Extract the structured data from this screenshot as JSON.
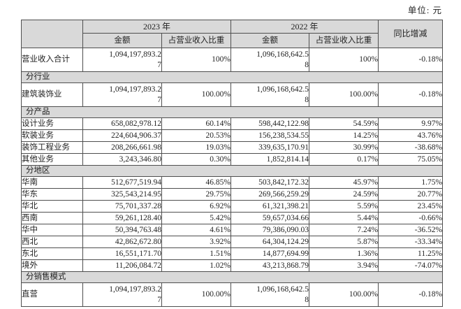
{
  "unit_label": "单位: 元",
  "table": {
    "header": {
      "year_2023": "2023 年",
      "year_2022": "2022 年",
      "yoy": "同比增减",
      "amount_2023": "金额",
      "share_2023": "占营业收入比重",
      "amount_2022": "金额",
      "share_2022": "占营业收入比重"
    },
    "colors": {
      "header_bg": "#d9d9d9",
      "border": "#4f4f4f",
      "text": "#1f1f1f"
    },
    "rows": [
      {
        "type": "data",
        "tall": true,
        "shaded_share": true,
        "label": "营业收入合计",
        "amount_2023": "1,094,197,893.2\n7",
        "share_2023": "100%",
        "amount_2022": "1,096,168,642.5\n8",
        "share_2022": "100%",
        "yoy": "-0.18%"
      },
      {
        "type": "section",
        "label": "分行业"
      },
      {
        "type": "data",
        "tall": true,
        "label": "建筑装饰业",
        "amount_2023": "1,094,197,893.2\n7",
        "share_2023": "100.00%",
        "amount_2022": "1,096,168,642.5\n8",
        "share_2022": "100.00%",
        "yoy": "-0.18%"
      },
      {
        "type": "section",
        "label": "分产品"
      },
      {
        "type": "data",
        "label": "设计业务",
        "amount_2023": "658,082,978.12",
        "share_2023": "60.14%",
        "amount_2022": "598,442,122.98",
        "share_2022": "54.59%",
        "yoy": "9.97%"
      },
      {
        "type": "data",
        "label": "软装业务",
        "amount_2023": "224,604,906.37",
        "share_2023": "20.53%",
        "amount_2022": "156,238,534.55",
        "share_2022": "14.25%",
        "yoy": "43.76%"
      },
      {
        "type": "data",
        "label": "装饰工程业务",
        "amount_2023": "208,266,661.98",
        "share_2023": "19.03%",
        "amount_2022": "339,635,170.91",
        "share_2022": "30.99%",
        "yoy": "-38.68%"
      },
      {
        "type": "data",
        "label": "其他业务",
        "amount_2023": "3,243,346.80",
        "share_2023": "0.30%",
        "amount_2022": "1,852,814.14",
        "share_2022": "0.17%",
        "yoy": "75.05%"
      },
      {
        "type": "section",
        "label": "分地区"
      },
      {
        "type": "data",
        "label": "华南",
        "amount_2023": "512,677,519.94",
        "share_2023": "46.85%",
        "amount_2022": "503,842,172.32",
        "share_2022": "45.97%",
        "yoy": "1.75%"
      },
      {
        "type": "data",
        "label": "华东",
        "amount_2023": "325,543,214.95",
        "share_2023": "29.75%",
        "amount_2022": "269,566,259.29",
        "share_2022": "24.59%",
        "yoy": "20.77%"
      },
      {
        "type": "data",
        "label": "华北",
        "amount_2023": "75,701,337.28",
        "share_2023": "6.92%",
        "amount_2022": "61,321,398.21",
        "share_2022": "5.59%",
        "yoy": "23.45%"
      },
      {
        "type": "data",
        "label": "西南",
        "amount_2023": "59,261,128.40",
        "share_2023": "5.42%",
        "amount_2022": "59,657,034.66",
        "share_2022": "5.44%",
        "yoy": "-0.66%"
      },
      {
        "type": "data",
        "label": "华中",
        "amount_2023": "50,394,763.48",
        "share_2023": "4.61%",
        "amount_2022": "79,386,090.03",
        "share_2022": "7.24%",
        "yoy": "-36.52%"
      },
      {
        "type": "data",
        "label": "西北",
        "amount_2023": "42,862,672.80",
        "share_2023": "3.92%",
        "amount_2022": "64,304,124.29",
        "share_2022": "5.87%",
        "yoy": "-33.34%"
      },
      {
        "type": "data",
        "label": "东北",
        "amount_2023": "16,551,171.70",
        "share_2023": "1.51%",
        "amount_2022": "14,877,694.99",
        "share_2022": "1.36%",
        "yoy": "11.25%"
      },
      {
        "type": "data",
        "label": "境外",
        "amount_2023": "11,206,084.72",
        "share_2023": "1.02%",
        "amount_2022": "43,213,868.79",
        "share_2022": "3.94%",
        "yoy": "-74.07%"
      },
      {
        "type": "section",
        "label": "分销售模式"
      },
      {
        "type": "data",
        "tall": true,
        "label": "直营",
        "amount_2023": "1,094,197,893.2\n7",
        "share_2023": "100.00%",
        "amount_2022": "1,096,168,642.5\n8",
        "share_2022": "100.00%",
        "yoy": "-0.18%"
      }
    ]
  }
}
